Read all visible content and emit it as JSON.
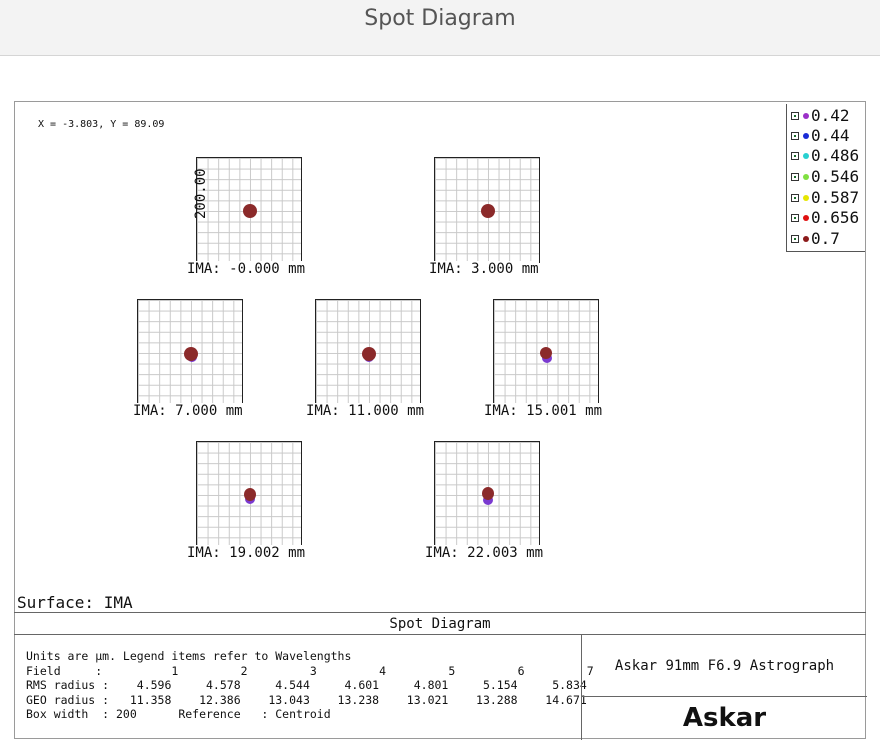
{
  "window": {
    "title": "Spot Diagram"
  },
  "cursor_readout": "X = -3.803, Y = 89.09",
  "legend": {
    "items": [
      {
        "label": "0.42",
        "color": "#9b30c8"
      },
      {
        "label": "0.44",
        "color": "#1a2bd6"
      },
      {
        "label": "0.486",
        "color": "#28d0d0"
      },
      {
        "label": "0.546",
        "color": "#80e040"
      },
      {
        "label": "0.587",
        "color": "#e6e600"
      },
      {
        "label": "0.656",
        "color": "#e01010"
      },
      {
        "label": "0.7",
        "color": "#8b1a1a"
      }
    ]
  },
  "plot": {
    "box_width_label": "200.00",
    "spot_color": "#8b2a2a",
    "secondary_color": "#7a3ad0"
  },
  "fields": [
    {
      "label": "IMA: -0.000 mm"
    },
    {
      "label": "IMA: 3.000 mm"
    },
    {
      "label": "IMA: 7.000 mm"
    },
    {
      "label": "IMA: 11.000 mm"
    },
    {
      "label": "IMA: 15.001 mm"
    },
    {
      "label": "IMA: 19.002 mm"
    },
    {
      "label": "IMA: 22.003 mm"
    }
  ],
  "surface_label": "Surface: IMA",
  "bottom": {
    "title": "Spot Diagram",
    "info_lines": [
      "Units are µm. Legend items refer to Wavelengths",
      "Field     :          1         2         3         4         5         6         7",
      "RMS radius :    4.596     4.578     4.544     4.601     4.801     5.154     5.834",
      "GEO radius :   11.358    12.386    13.043    13.238    13.021    13.288    14.671",
      "Box width  : 200      Reference   : Centroid"
    ],
    "lens_name": "Askar 91mm F6.9 Astrograph",
    "brand": "Askar"
  }
}
